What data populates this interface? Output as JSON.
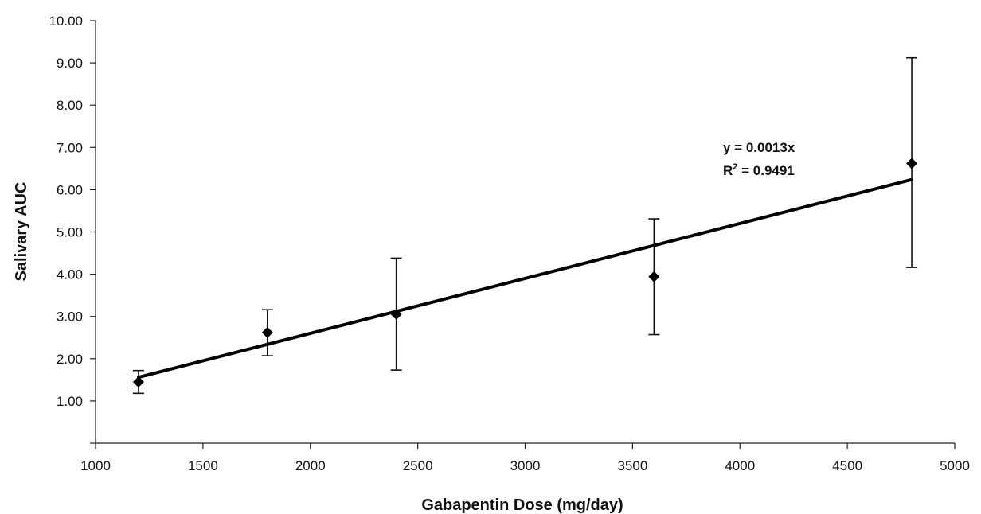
{
  "chart_data": {
    "type": "scatter",
    "title": "",
    "xlabel": "Gabapentin Dose (mg/day)",
    "ylabel": "Salivary AUC",
    "xlim": [
      1000,
      5000
    ],
    "ylim": [
      0,
      10
    ],
    "x_ticks": [
      "1000",
      "1500",
      "2000",
      "2500",
      "3000",
      "3500",
      "4000",
      "4500",
      "5000"
    ],
    "y_ticks": [
      "1.00",
      "2.00",
      "3.00",
      "4.00",
      "5.00",
      "6.00",
      "7.00",
      "8.00",
      "9.00",
      "10.00"
    ],
    "grid": false,
    "points": [
      {
        "x": 1200,
        "y": 1.45,
        "err_low": 1.18,
        "err_high": 1.72
      },
      {
        "x": 1800,
        "y": 2.62,
        "err_low": 2.07,
        "err_high": 3.16
      },
      {
        "x": 2400,
        "y": 3.05,
        "err_low": 1.73,
        "err_high": 4.38
      },
      {
        "x": 3600,
        "y": 3.94,
        "err_low": 2.57,
        "err_high": 5.31
      },
      {
        "x": 4800,
        "y": 6.62,
        "err_low": 4.16,
        "err_high": 9.12
      }
    ],
    "trendline": {
      "slope": 0.0013,
      "x_start": 1200,
      "x_end": 4800
    },
    "annotation": {
      "equation": "y = 0.0013x",
      "r2_prefix": "R",
      "r2_sup": "2",
      "r2_value": " = 0.9491"
    },
    "colors": {
      "marker": "#000000",
      "line": "#000000"
    }
  }
}
